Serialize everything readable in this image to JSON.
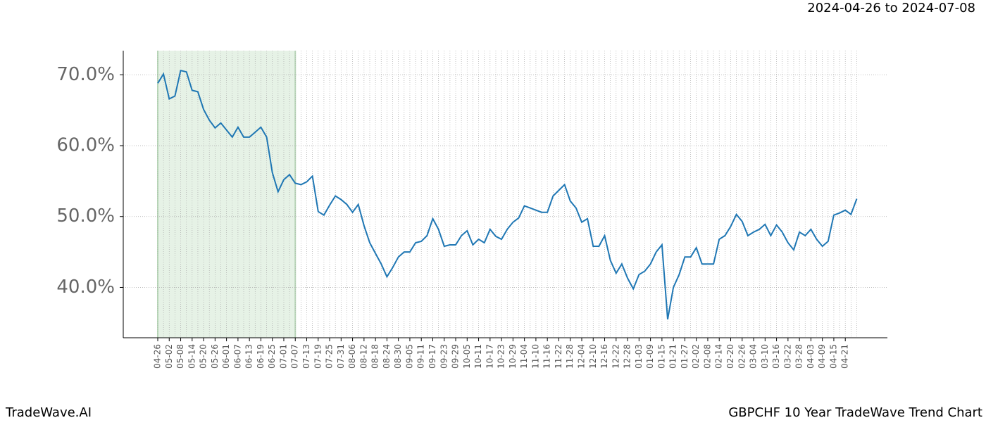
{
  "chart_data": {
    "type": "line",
    "title": "GBPCHF 10 Year TradeWave Trend Chart",
    "subtitle": "2024-04-26 to 2024-07-08",
    "brand": "TradeWave.AI",
    "categories": [
      "04-26",
      null,
      "05-02",
      null,
      "05-08",
      null,
      "05-14",
      null,
      "05-20",
      null,
      "05-26",
      null,
      "06-01",
      null,
      "06-07",
      null,
      "06-13",
      null,
      "06-19",
      null,
      "06-25",
      null,
      "07-01",
      null,
      "07-07",
      null,
      "07-13",
      null,
      "07-19",
      null,
      "07-25",
      null,
      "07-31",
      null,
      "08-06",
      null,
      "08-12",
      null,
      "08-18",
      null,
      "08-24",
      null,
      "08-30",
      null,
      "09-05",
      null,
      "09-11",
      null,
      "09-17",
      null,
      "09-23",
      null,
      "09-29",
      null,
      "10-05",
      null,
      "10-11",
      null,
      "10-17",
      null,
      "10-23",
      null,
      "10-29",
      null,
      "11-04",
      null,
      "11-10",
      null,
      "11-16",
      null,
      "11-22",
      null,
      "11-28",
      null,
      "12-04",
      null,
      "12-10",
      null,
      "12-16",
      null,
      "12-22",
      null,
      "12-28",
      null,
      "01-03",
      null,
      "01-09",
      null,
      "01-15",
      null,
      "01-21",
      null,
      "01-27",
      null,
      "02-02",
      null,
      "02-08",
      null,
      "02-14",
      null,
      "02-20",
      null,
      "02-26",
      null,
      "03-04",
      null,
      "03-10",
      null,
      "03-16",
      null,
      "03-22",
      null,
      "03-28",
      null,
      "04-03",
      null,
      "04-09",
      null,
      "04-15",
      null,
      "04-21",
      null,
      null
    ],
    "values": [
      68.8,
      70.1,
      66.6,
      67.0,
      70.6,
      70.4,
      67.8,
      67.6,
      65.1,
      63.6,
      62.5,
      63.2,
      62.2,
      61.2,
      62.6,
      61.2,
      61.2,
      61.9,
      62.6,
      61.2,
      56.2,
      53.5,
      55.2,
      55.9,
      54.7,
      54.5,
      54.9,
      55.7,
      50.7,
      50.2,
      51.6,
      52.9,
      52.4,
      51.7,
      50.6,
      51.7,
      48.7,
      46.3,
      44.8,
      43.3,
      41.5,
      42.8,
      44.3,
      45.0,
      45.0,
      46.3,
      46.5,
      47.3,
      49.7,
      48.2,
      45.8,
      46.0,
      46.0,
      47.3,
      48.0,
      46.0,
      46.8,
      46.3,
      48.2,
      47.2,
      46.8,
      48.2,
      49.2,
      49.8,
      51.5,
      51.2,
      50.9,
      50.6,
      50.6,
      52.9,
      53.7,
      54.5,
      52.2,
      51.2,
      49.2,
      49.7,
      45.8,
      45.8,
      47.3,
      43.8,
      42.0,
      43.3,
      41.3,
      39.8,
      41.8,
      42.3,
      43.3,
      45.0,
      46.0,
      35.5,
      40.0,
      41.8,
      44.3,
      44.3,
      45.6,
      43.3,
      43.3,
      43.3,
      46.8,
      47.3,
      48.6,
      50.3,
      49.3,
      47.3,
      47.8,
      48.2,
      48.9,
      47.3,
      48.8,
      47.8,
      46.3,
      45.3,
      47.8,
      47.3,
      48.2,
      46.8,
      45.8,
      46.5,
      50.2,
      50.5,
      50.9,
      50.3,
      52.5
    ],
    "color": "#1f77b4",
    "shaded_range": [
      "04-26",
      "07-07"
    ],
    "shade_color": "#e6f2e6",
    "ylim": [
      32.9,
      73.4
    ],
    "yticks": [
      {
        "value": 40,
        "label": "40.0%"
      },
      {
        "value": 50,
        "label": "50.0%"
      },
      {
        "value": 60,
        "label": "60.0%"
      },
      {
        "value": 70,
        "label": "70.0%"
      }
    ],
    "grid": true
  }
}
